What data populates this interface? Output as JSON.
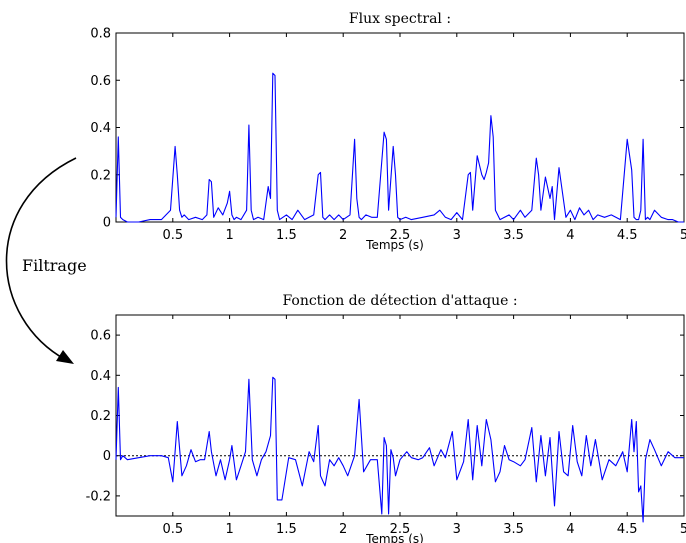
{
  "annotation": {
    "label": "Filtrage"
  },
  "chart_data": [
    {
      "type": "line",
      "title": "Flux spectral :",
      "xlabel": "Temps (s)",
      "ylabel": "",
      "xlim": [
        0,
        5
      ],
      "ylim": [
        0,
        0.8
      ],
      "xticks": [
        "0.5",
        "1",
        "1.5",
        "2",
        "2.5",
        "3",
        "3.5",
        "4",
        "4.5",
        "5"
      ],
      "yticks": [
        "0",
        "0.2",
        "0.4",
        "0.6",
        "0.8"
      ],
      "zero_line": false,
      "color": "#0000ff",
      "series": [
        {
          "x": [
            0,
            0.02,
            0.04,
            0.06,
            0.1,
            0.2,
            0.3,
            0.4,
            0.48,
            0.52,
            0.54,
            0.56,
            0.58,
            0.6,
            0.64,
            0.7,
            0.76,
            0.8,
            0.82,
            0.84,
            0.86,
            0.9,
            0.94,
            0.98,
            1.0,
            1.02,
            1.04,
            1.06,
            1.1,
            1.15,
            1.17,
            1.19,
            1.21,
            1.25,
            1.3,
            1.34,
            1.36,
            1.38,
            1.4,
            1.42,
            1.44,
            1.5,
            1.55,
            1.6,
            1.66,
            1.7,
            1.74,
            1.78,
            1.8,
            1.82,
            1.84,
            1.88,
            1.92,
            1.96,
            2.0,
            2.06,
            2.1,
            2.12,
            2.14,
            2.16,
            2.2,
            2.25,
            2.3,
            2.36,
            2.38,
            2.4,
            2.44,
            2.46,
            2.48,
            2.5,
            2.55,
            2.6,
            2.7,
            2.8,
            2.85,
            2.9,
            2.95,
            3.0,
            3.05,
            3.1,
            3.12,
            3.14,
            3.18,
            3.22,
            3.24,
            3.26,
            3.28,
            3.3,
            3.32,
            3.34,
            3.38,
            3.42,
            3.46,
            3.5,
            3.56,
            3.6,
            3.66,
            3.7,
            3.72,
            3.74,
            3.78,
            3.82,
            3.84,
            3.86,
            3.9,
            3.96,
            4.0,
            4.04,
            4.08,
            4.12,
            4.16,
            4.2,
            4.24,
            4.3,
            4.36,
            4.44,
            4.5,
            4.54,
            4.56,
            4.58,
            4.6,
            4.62,
            4.64,
            4.66,
            4.68,
            4.7,
            4.74,
            4.8,
            4.86,
            4.9,
            4.95,
            5.0
          ],
          "y": [
            0.02,
            0.36,
            0.02,
            0.01,
            0.0,
            0.0,
            0.01,
            0.01,
            0.05,
            0.32,
            0.2,
            0.05,
            0.02,
            0.03,
            0.01,
            0.02,
            0.01,
            0.03,
            0.18,
            0.17,
            0.02,
            0.06,
            0.03,
            0.08,
            0.13,
            0.03,
            0.01,
            0.02,
            0.01,
            0.05,
            0.41,
            0.05,
            0.01,
            0.02,
            0.01,
            0.15,
            0.1,
            0.63,
            0.62,
            0.05,
            0.01,
            0.03,
            0.01,
            0.05,
            0.01,
            0.02,
            0.03,
            0.2,
            0.21,
            0.02,
            0.01,
            0.03,
            0.01,
            0.03,
            0.01,
            0.03,
            0.35,
            0.1,
            0.02,
            0.01,
            0.03,
            0.02,
            0.02,
            0.38,
            0.35,
            0.05,
            0.32,
            0.2,
            0.02,
            0.01,
            0.02,
            0.01,
            0.02,
            0.03,
            0.05,
            0.02,
            0.01,
            0.04,
            0.01,
            0.2,
            0.21,
            0.05,
            0.28,
            0.2,
            0.18,
            0.21,
            0.25,
            0.45,
            0.36,
            0.05,
            0.01,
            0.02,
            0.03,
            0.01,
            0.05,
            0.02,
            0.05,
            0.27,
            0.2,
            0.05,
            0.19,
            0.1,
            0.15,
            0.01,
            0.23,
            0.02,
            0.05,
            0.01,
            0.06,
            0.03,
            0.05,
            0.01,
            0.03,
            0.02,
            0.03,
            0.01,
            0.35,
            0.22,
            0.02,
            0.01,
            0.01,
            0.05,
            0.35,
            0.01,
            0.02,
            0.01,
            0.05,
            0.02,
            0.01,
            0.01,
            0.0,
            0.0
          ]
        }
      ]
    },
    {
      "type": "line",
      "title": "Fonction de détection d'attaque :",
      "xlabel": "Temps (s)",
      "ylabel": "",
      "xlim": [
        0,
        5
      ],
      "ylim": [
        -0.3,
        0.7
      ],
      "xticks": [
        "0.5",
        "1",
        "1.5",
        "2",
        "2.5",
        "3",
        "3.5",
        "4",
        "4.5",
        "5"
      ],
      "yticks": [
        "-0.2",
        "0",
        "0.2",
        "0.4",
        "0.6"
      ],
      "zero_line": true,
      "color": "#0000ff",
      "series": [
        {
          "x": [
            0,
            0.02,
            0.04,
            0.06,
            0.1,
            0.2,
            0.3,
            0.4,
            0.46,
            0.5,
            0.52,
            0.54,
            0.58,
            0.62,
            0.66,
            0.7,
            0.74,
            0.78,
            0.82,
            0.84,
            0.88,
            0.92,
            0.96,
            1.0,
            1.02,
            1.06,
            1.1,
            1.14,
            1.17,
            1.2,
            1.24,
            1.28,
            1.32,
            1.36,
            1.38,
            1.4,
            1.42,
            1.46,
            1.52,
            1.58,
            1.64,
            1.7,
            1.74,
            1.78,
            1.8,
            1.84,
            1.88,
            1.92,
            1.96,
            2.0,
            2.04,
            2.1,
            2.14,
            2.18,
            2.24,
            2.3,
            2.34,
            2.36,
            2.38,
            2.4,
            2.42,
            2.44,
            2.46,
            2.5,
            2.56,
            2.6,
            2.66,
            2.7,
            2.76,
            2.8,
            2.86,
            2.9,
            2.96,
            3.0,
            3.06,
            3.1,
            3.14,
            3.18,
            3.22,
            3.26,
            3.3,
            3.34,
            3.38,
            3.42,
            3.46,
            3.5,
            3.56,
            3.6,
            3.66,
            3.7,
            3.74,
            3.78,
            3.82,
            3.86,
            3.9,
            3.94,
            3.98,
            4.02,
            4.06,
            4.1,
            4.14,
            4.18,
            4.22,
            4.28,
            4.34,
            4.4,
            4.46,
            4.5,
            4.54,
            4.56,
            4.58,
            4.6,
            4.62,
            4.64,
            4.66,
            4.7,
            4.74,
            4.8,
            4.86,
            4.92,
            5.0
          ],
          "y": [
            -0.02,
            0.34,
            -0.02,
            0.0,
            -0.02,
            -0.01,
            0.0,
            0.0,
            -0.01,
            -0.13,
            0.02,
            0.17,
            -0.1,
            -0.05,
            0.03,
            -0.03,
            -0.02,
            -0.02,
            0.12,
            0.02,
            -0.1,
            -0.02,
            -0.12,
            -0.02,
            0.05,
            -0.12,
            -0.05,
            0.02,
            0.38,
            -0.02,
            -0.1,
            -0.02,
            0.02,
            0.1,
            0.39,
            0.38,
            -0.22,
            -0.22,
            -0.01,
            -0.02,
            -0.15,
            0.02,
            -0.03,
            0.15,
            -0.1,
            -0.15,
            -0.02,
            -0.05,
            -0.01,
            -0.05,
            -0.1,
            0.0,
            0.28,
            -0.08,
            -0.02,
            -0.02,
            -0.29,
            0.09,
            0.05,
            -0.29,
            0.03,
            -0.01,
            -0.1,
            -0.02,
            0.02,
            -0.01,
            -0.02,
            -0.01,
            0.04,
            -0.05,
            0.03,
            -0.01,
            0.12,
            -0.12,
            -0.03,
            0.18,
            -0.12,
            0.15,
            -0.05,
            0.18,
            0.08,
            -0.13,
            -0.08,
            0.05,
            -0.02,
            -0.03,
            -0.05,
            -0.02,
            0.14,
            -0.13,
            0.1,
            -0.1,
            0.09,
            -0.25,
            0.12,
            -0.08,
            -0.1,
            0.15,
            -0.03,
            -0.1,
            0.1,
            -0.05,
            0.08,
            -0.12,
            -0.02,
            -0.05,
            0.02,
            -0.08,
            0.18,
            0.02,
            0.17,
            -0.18,
            -0.15,
            -0.33,
            -0.02,
            0.08,
            0.03,
            -0.05,
            0.02,
            -0.01,
            -0.01
          ]
        }
      ]
    }
  ]
}
